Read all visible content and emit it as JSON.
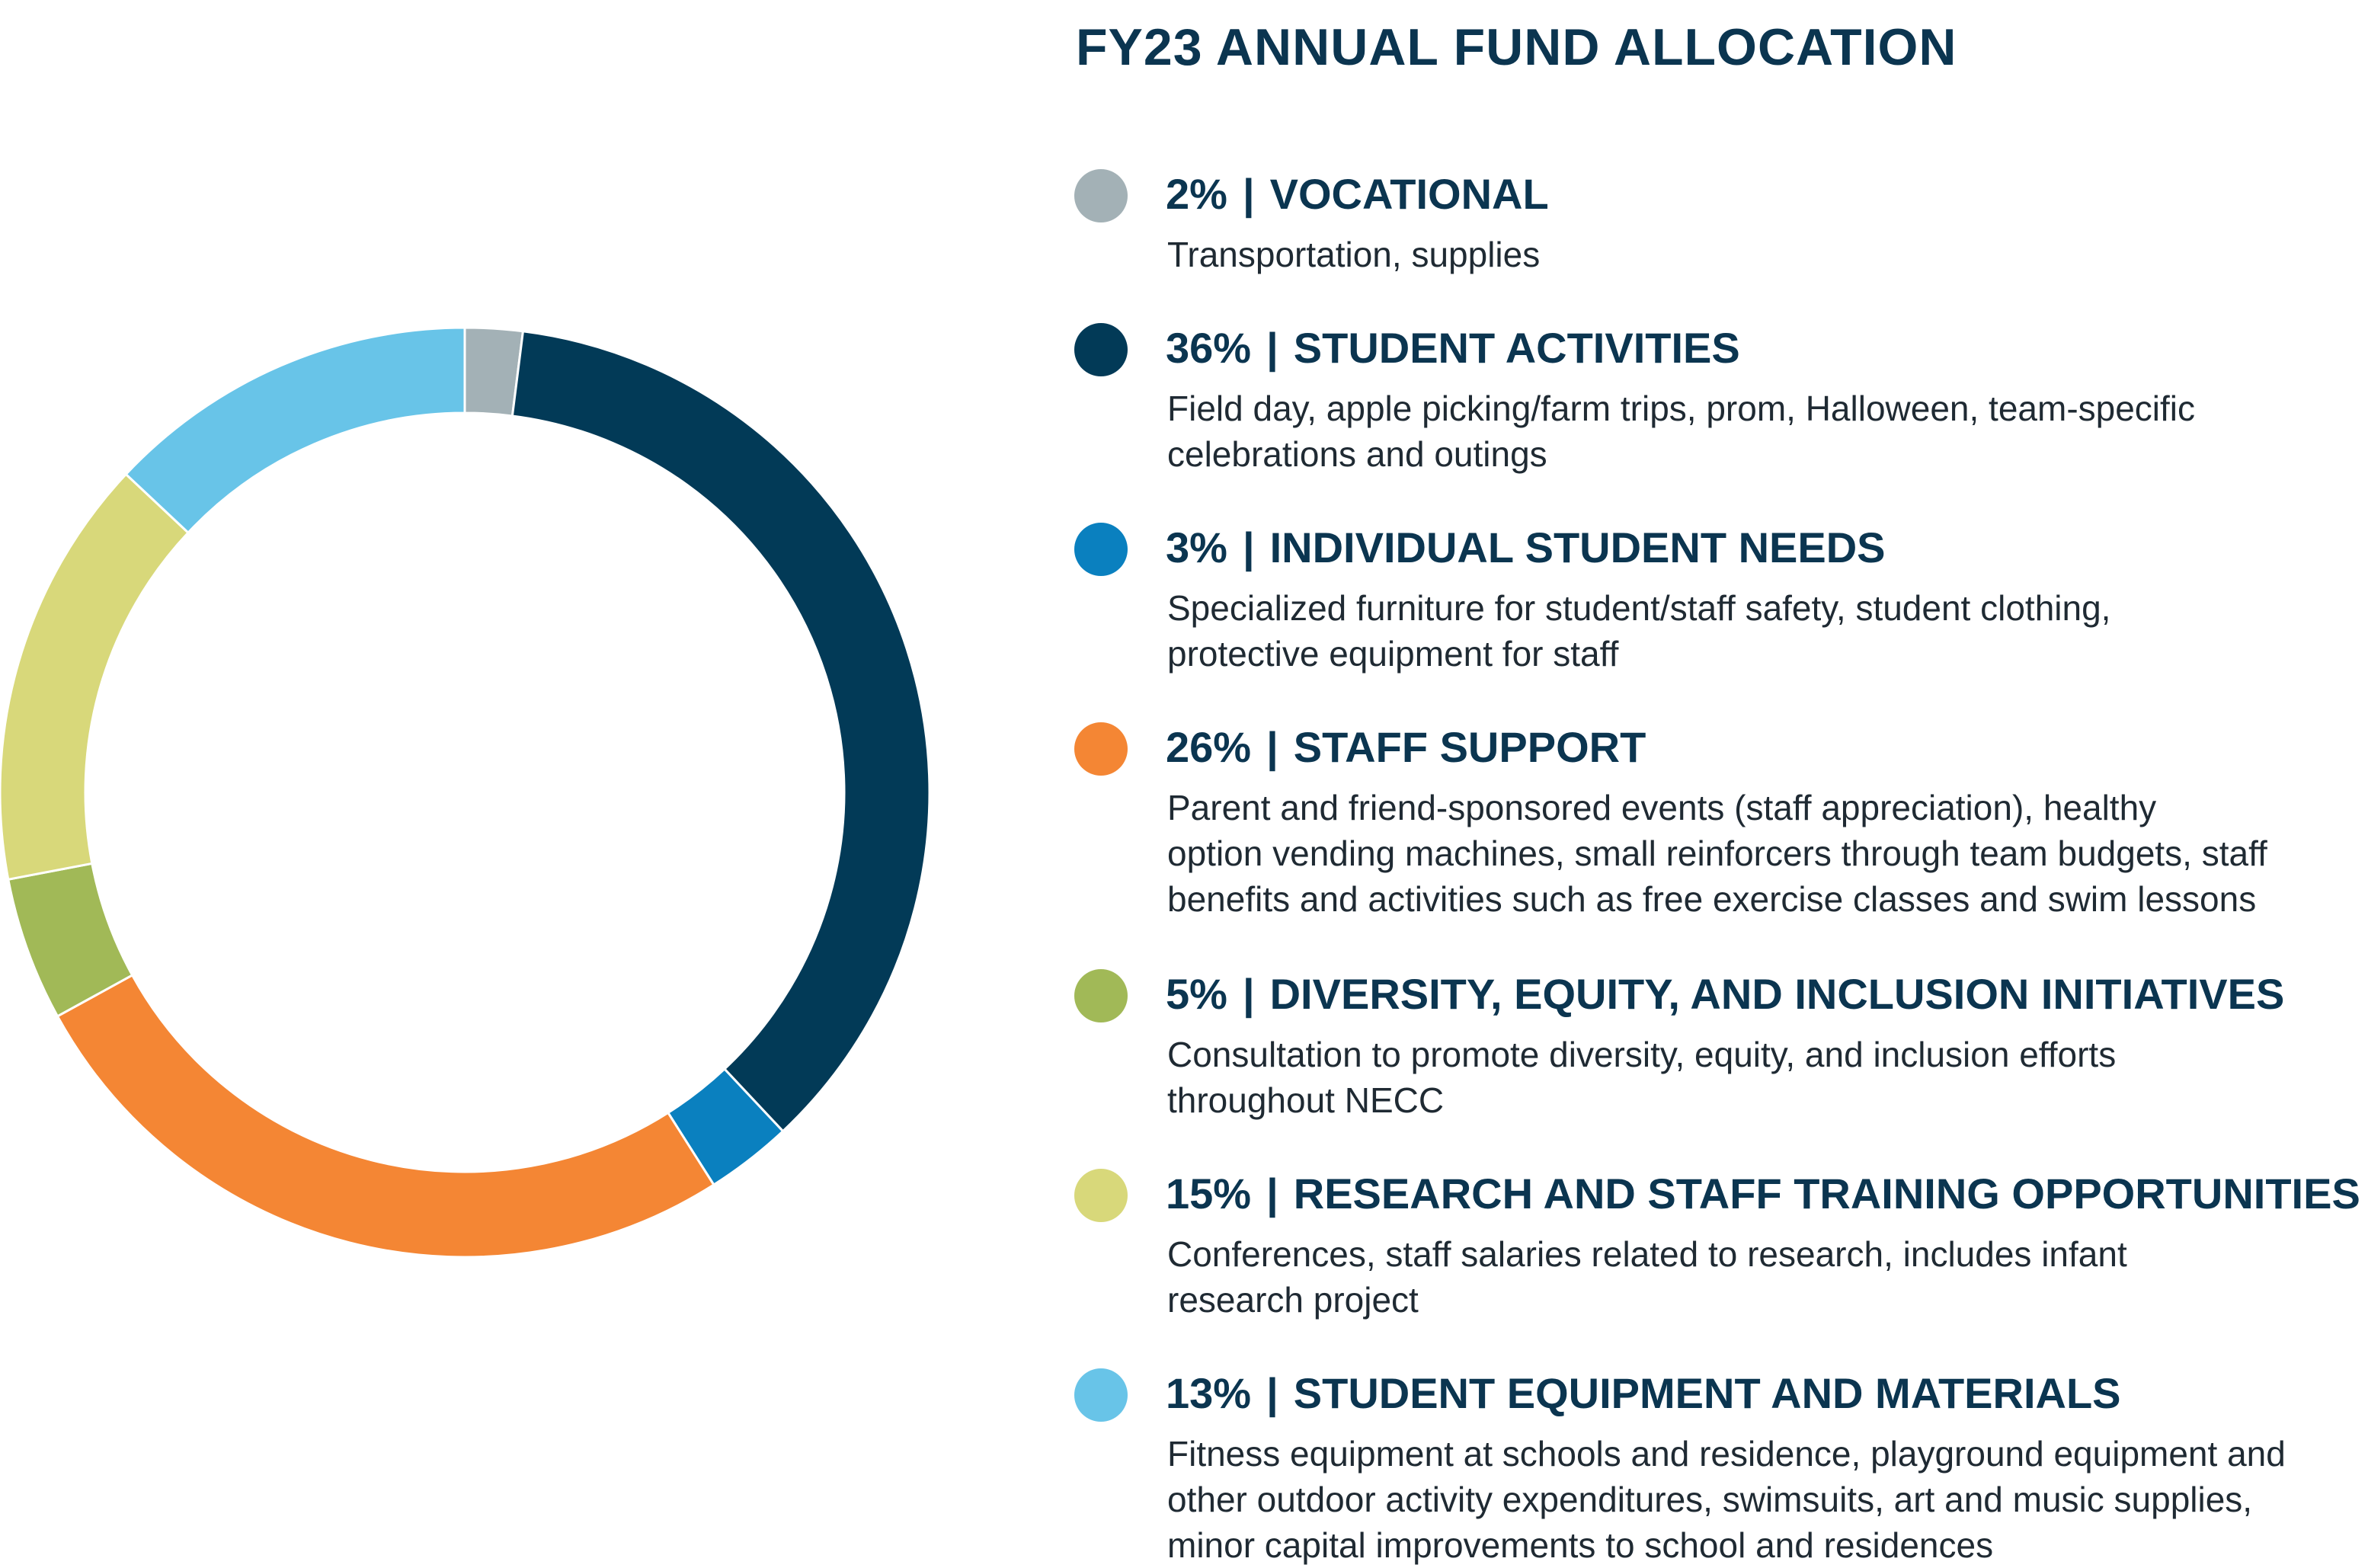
{
  "chart_data": {
    "type": "pie",
    "title": "FY23 ANNUAL FUND ALLOCATION",
    "separator": "|",
    "slices": [
      {
        "percent_label": "2%",
        "label": "VOCATIONAL",
        "value": 2,
        "color": "#a3b1b6",
        "description": "Transportation, supplies"
      },
      {
        "percent_label": "36%",
        "label": "STUDENT ACTIVITIES",
        "value": 36,
        "color": "#023a57",
        "description": "Field day, apple picking/farm trips, prom, Halloween, team-specific\ncelebrations and outings"
      },
      {
        "percent_label": "3%",
        "label": "INDIVIDUAL STUDENT NEEDS",
        "value": 3,
        "color": "#0a80bf",
        "description": "Specialized furniture for student/staff safety, student clothing,\nprotective equipment for staff"
      },
      {
        "percent_label": "26%",
        "label": "STAFF SUPPORT",
        "value": 26,
        "color": "#f48634",
        "description": "Parent and friend-sponsored events (staff appreciation), healthy\noption vending machines, small reinforcers through team budgets, staff\nbenefits and activities such as free exercise classes and swim lessons"
      },
      {
        "percent_label": "5%",
        "label": "DIVERSITY, EQUITY, AND INCLUSION INITIATIVES",
        "value": 5,
        "color": "#a1b957",
        "description": "Consultation to promote diversity, equity, and inclusion efforts\nthroughout NECC"
      },
      {
        "percent_label": "15%",
        "label": "RESEARCH AND STAFF TRAINING OPPORTUNITIES",
        "value": 15,
        "color": "#d8d87a",
        "description": "Conferences, staff salaries related to research, includes infant\nresearch project"
      },
      {
        "percent_label": "13%",
        "label": "STUDENT EQUIPMENT AND MATERIALS",
        "value": 13,
        "color": "#68c4e8",
        "description": "Fitness equipment at schools and residence, playground equipment and\nother outdoor activity expenditures, swimsuits, art and music supplies,\nminor capital  improvements to school and residences"
      }
    ]
  }
}
